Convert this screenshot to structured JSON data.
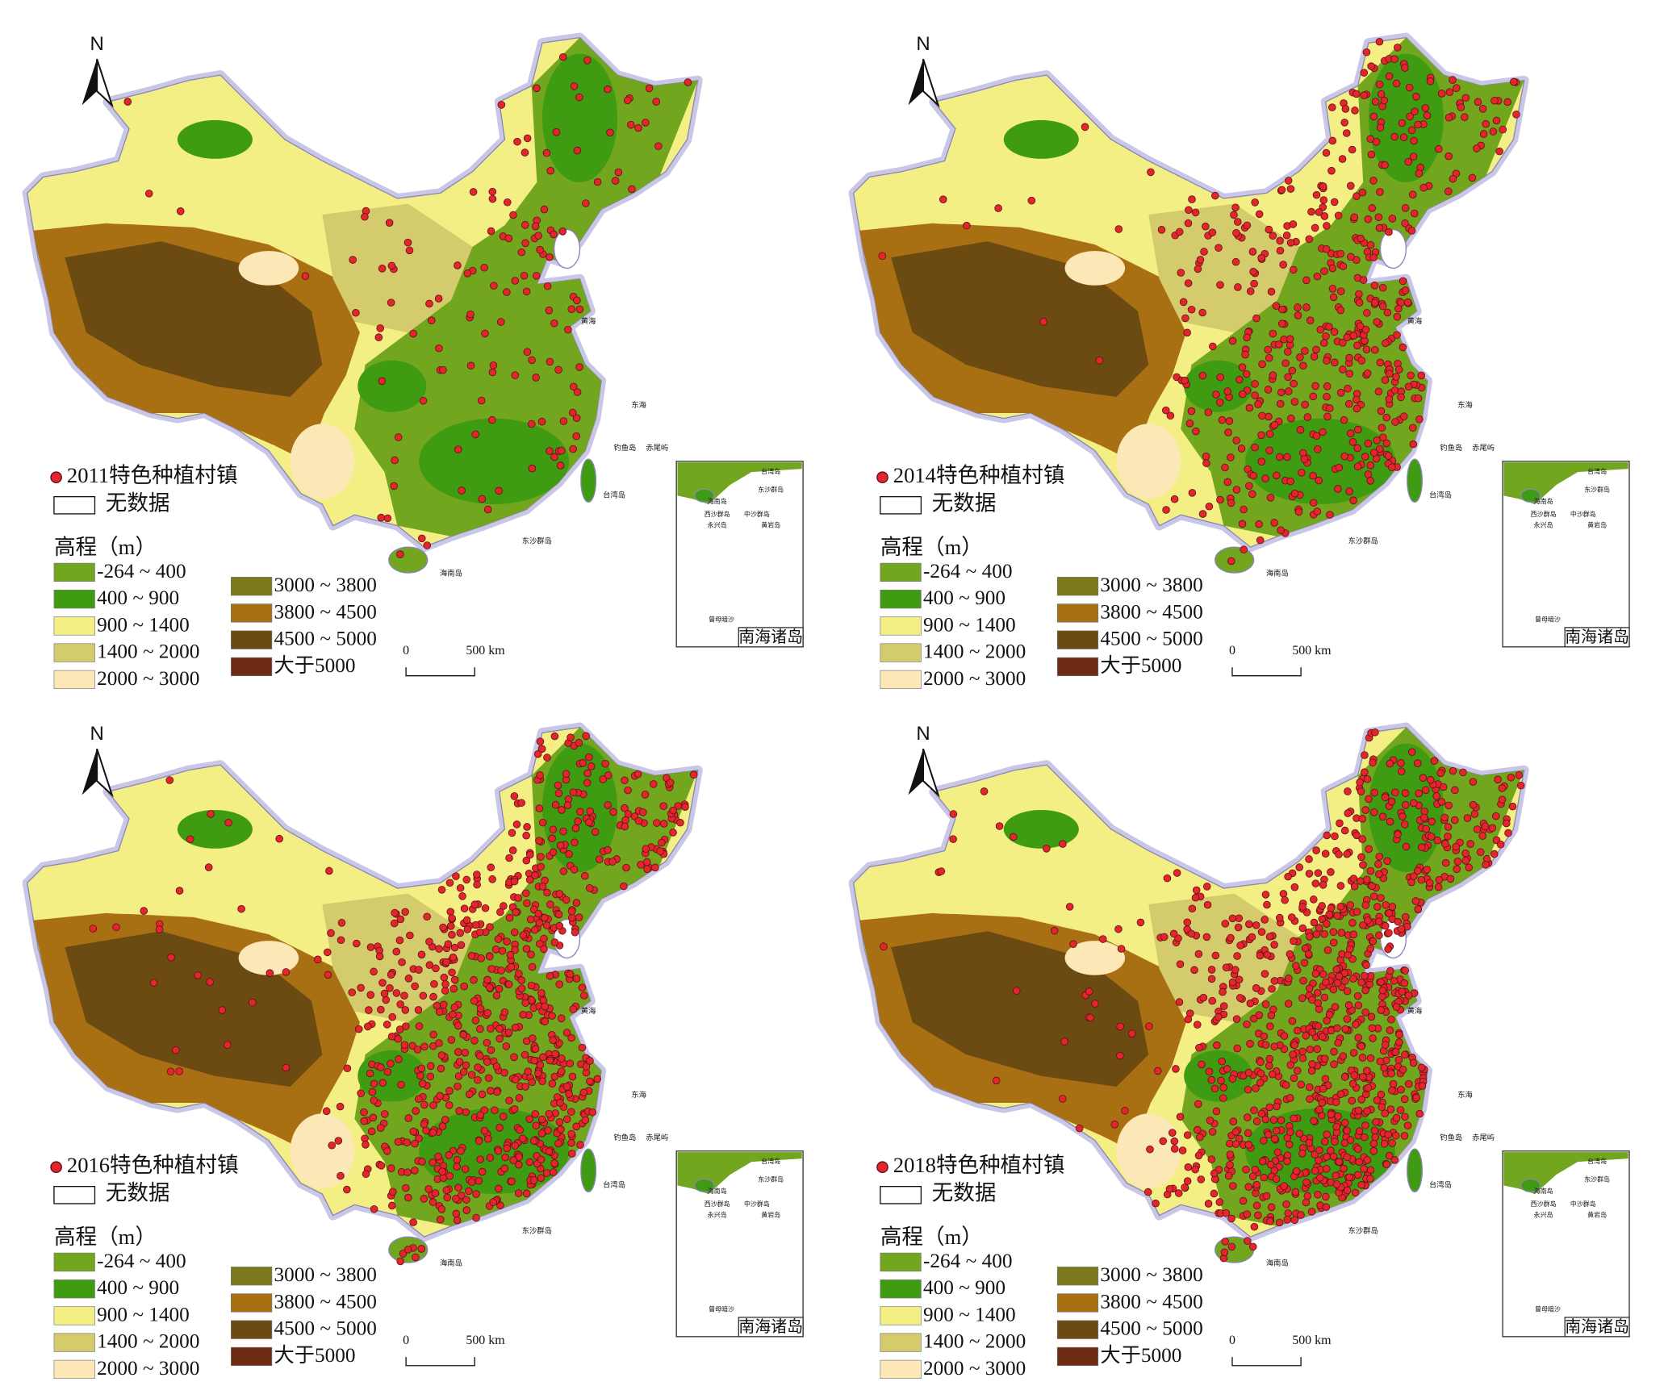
{
  "north": "N",
  "panels": [
    {
      "title": "2011特色种植村镇"
    },
    {
      "title": "2014特色种植村镇"
    },
    {
      "title": "2016特色种植村镇"
    },
    {
      "title": "2018特色种植村镇"
    }
  ],
  "legend": {
    "no_data": "无数据",
    "elevation_title": "高程（m）",
    "classes": [
      {
        "label": "-264 ~ 400",
        "color": "#72a61e"
      },
      {
        "label": "400 ~ 900",
        "color": "#3f9c12"
      },
      {
        "label": "900 ~ 1400",
        "color": "#f4ef84"
      },
      {
        "label": "1400 ~ 2000",
        "color": "#d3cb6c"
      },
      {
        "label": "2000 ~ 3000",
        "color": "#fbe8b6"
      },
      {
        "label": "3000 ~ 3800",
        "color": "#7c7a1c"
      },
      {
        "label": "3800 ~ 4500",
        "color": "#a87013"
      },
      {
        "label": "4500 ~ 5000",
        "color": "#6c4b13"
      },
      {
        "label": "大于5000",
        "color": "#6e2a12"
      }
    ]
  },
  "scale_bar": {
    "start": "0",
    "end": "500 km"
  },
  "map_labels": [
    "黄海",
    "东海",
    "钓鱼岛",
    "赤尾屿",
    "台湾岛",
    "东沙群岛",
    "海南岛"
  ],
  "inset": {
    "title": "南海诸岛",
    "labels": [
      "台湾岛",
      "东沙群岛",
      "海南岛",
      "西沙群岛",
      "中沙群岛",
      "永兴岛",
      "黄岩岛",
      "曾母暗沙"
    ]
  }
}
